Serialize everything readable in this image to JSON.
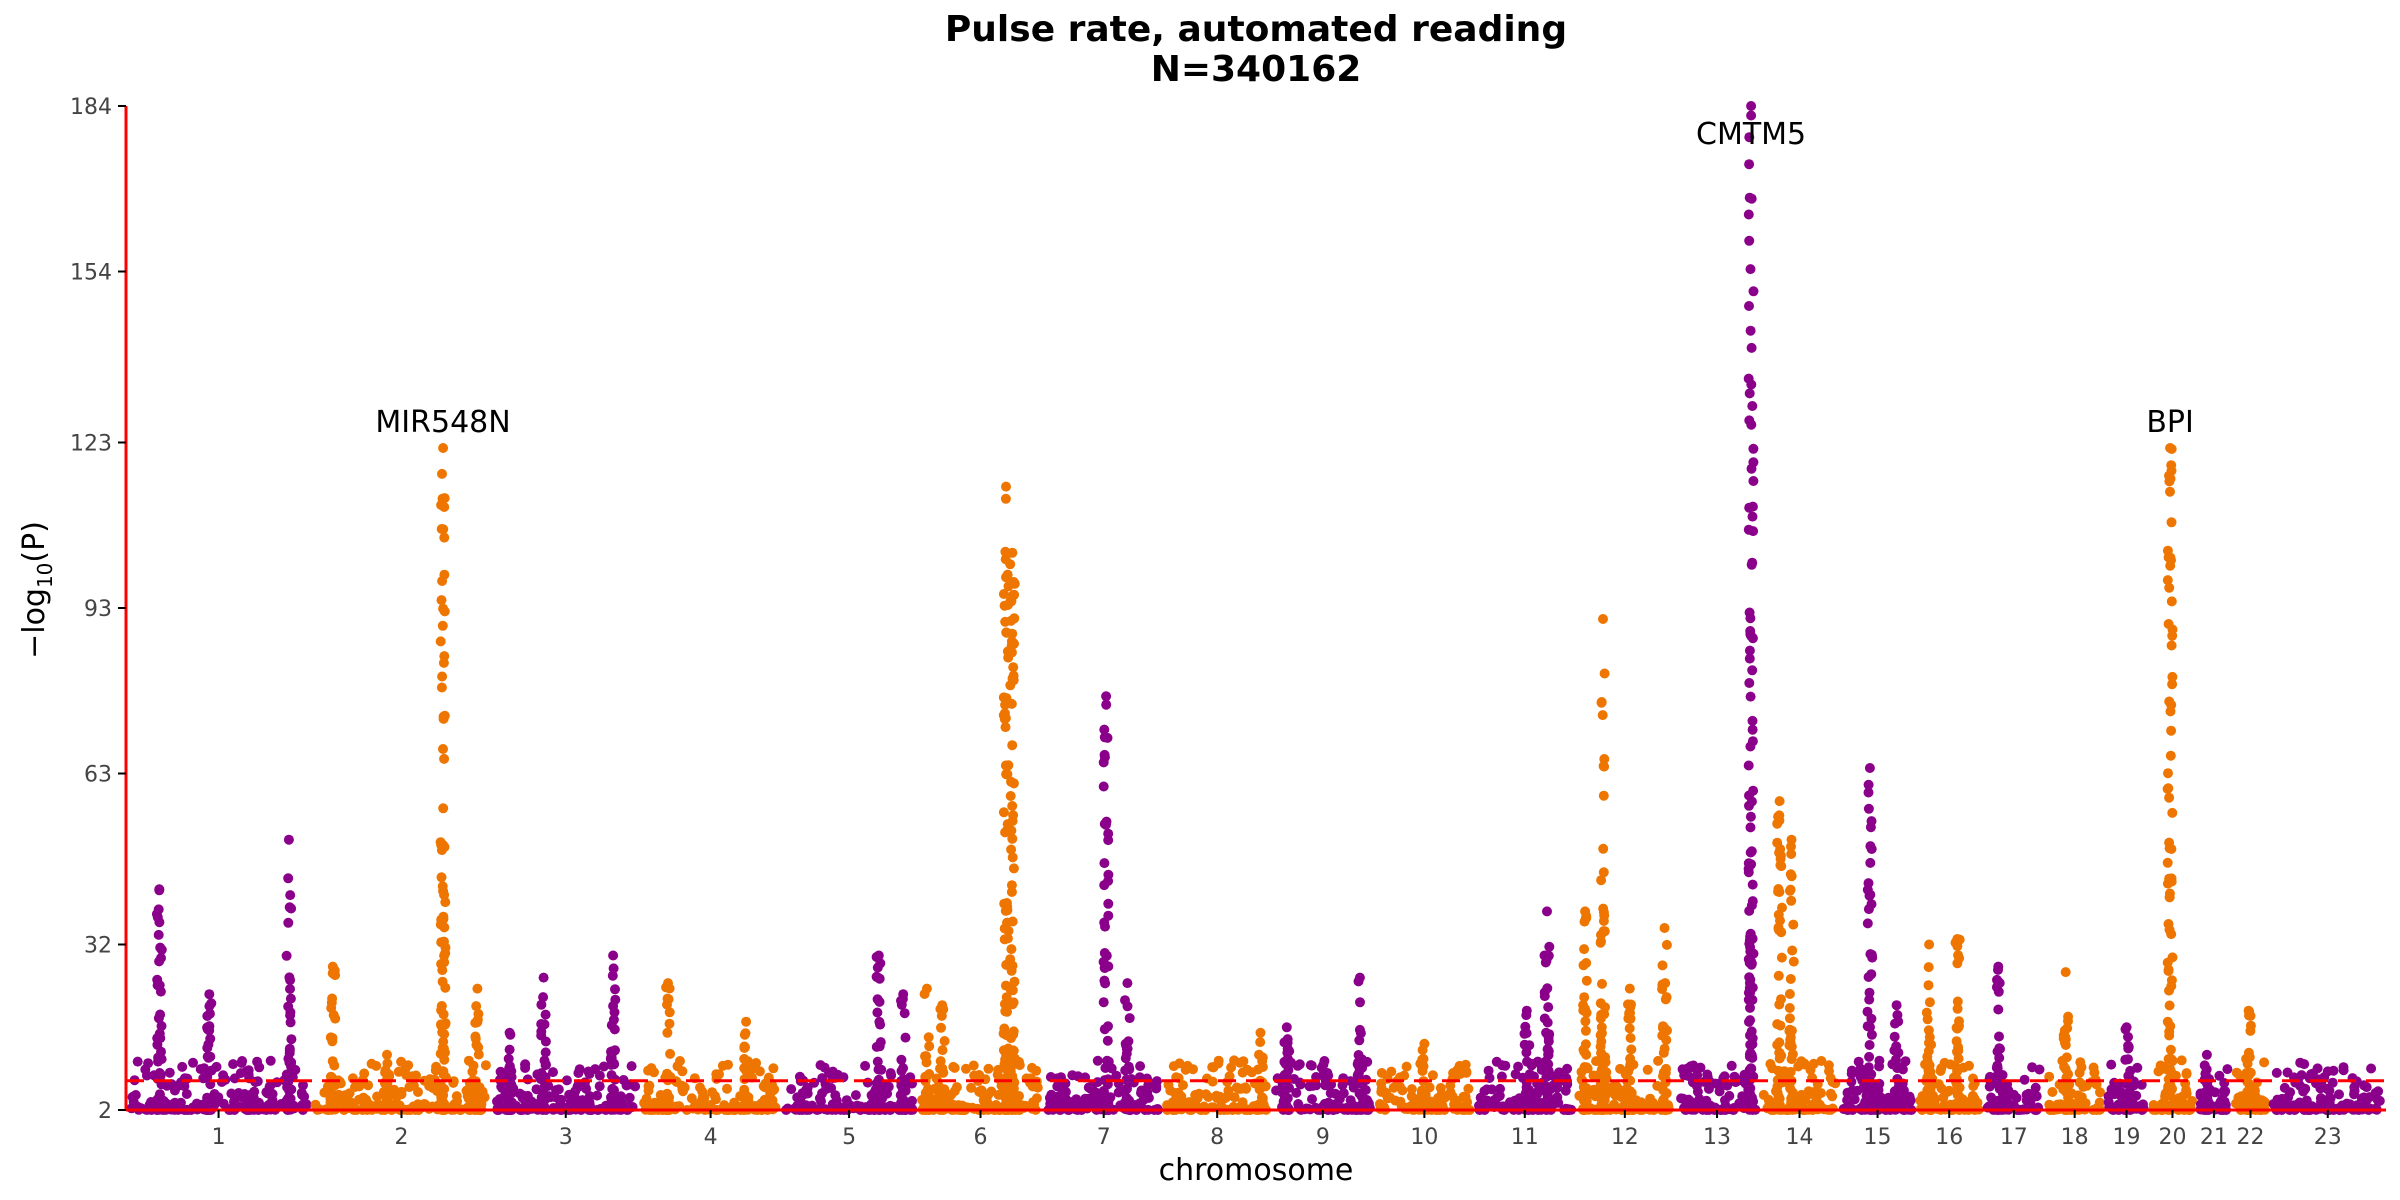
{
  "chart_data": {
    "type": "scatter",
    "subtype": "manhattan",
    "title_line1": "Pulse rate, automated reading",
    "title_line2": "N=340162",
    "xlabel": "chromosome",
    "ylabel_prefix": "−log",
    "ylabel_sub": "10",
    "ylabel_suffix": "(P)",
    "ylim": [
      2,
      184
    ],
    "yticks": [
      2,
      32,
      63,
      93,
      123,
      154,
      184
    ],
    "threshold": 7.3,
    "colors": {
      "odd": "#8B008B",
      "even": "#EE7600",
      "threshold": "#FF0000",
      "axis": "#FF0000"
    },
    "grid": false,
    "legend": "none",
    "chromosomes": [
      {
        "label": "1",
        "size": 248
      },
      {
        "label": "2",
        "size": 242
      },
      {
        "label": "3",
        "size": 198
      },
      {
        "label": "4",
        "size": 190
      },
      {
        "label": "5",
        "size": 181
      },
      {
        "label": "6",
        "size": 171
      },
      {
        "label": "7",
        "size": 159
      },
      {
        "label": "8",
        "size": 145
      },
      {
        "label": "9",
        "size": 138
      },
      {
        "label": "10",
        "size": 134
      },
      {
        "label": "11",
        "size": 135
      },
      {
        "label": "12",
        "size": 133
      },
      {
        "label": "13",
        "size": 114
      },
      {
        "label": "14",
        "size": 107
      },
      {
        "label": "15",
        "size": 102
      },
      {
        "label": "16",
        "size": 90
      },
      {
        "label": "17",
        "size": 83
      },
      {
        "label": "18",
        "size": 80
      },
      {
        "label": "19",
        "size": 59
      },
      {
        "label": "20",
        "size": 64
      },
      {
        "label": "21",
        "size": 47
      },
      {
        "label": "22",
        "size": 51
      },
      {
        "label": "23",
        "size": 156
      }
    ],
    "peaks": [
      {
        "chr": 1,
        "pos": 0.18,
        "max": 42
      },
      {
        "chr": 1,
        "pos": 0.45,
        "max": 23
      },
      {
        "chr": 1,
        "pos": 0.88,
        "max": 51
      },
      {
        "chr": 2,
        "pos": 0.12,
        "max": 28
      },
      {
        "chr": 2,
        "pos": 0.42,
        "max": 12
      },
      {
        "chr": 2,
        "pos": 0.73,
        "max": 122
      },
      {
        "chr": 2,
        "pos": 0.92,
        "max": 24
      },
      {
        "chr": 3,
        "pos": 0.12,
        "max": 16
      },
      {
        "chr": 3,
        "pos": 0.35,
        "max": 26
      },
      {
        "chr": 3,
        "pos": 0.82,
        "max": 30
      },
      {
        "chr": 4,
        "pos": 0.2,
        "max": 25
      },
      {
        "chr": 4,
        "pos": 0.75,
        "max": 18
      },
      {
        "chr": 5,
        "pos": 0.72,
        "max": 30
      },
      {
        "chr": 5,
        "pos": 0.9,
        "max": 23
      },
      {
        "chr": 6,
        "pos": 0.08,
        "max": 24
      },
      {
        "chr": 6,
        "pos": 0.2,
        "max": 21
      },
      {
        "chr": 6,
        "pos": 0.7,
        "max": 115
      },
      {
        "chr": 6,
        "pos": 0.75,
        "max": 103
      },
      {
        "chr": 7,
        "pos": 0.52,
        "max": 77
      },
      {
        "chr": 7,
        "pos": 0.7,
        "max": 25
      },
      {
        "chr": 8,
        "pos": 0.9,
        "max": 16
      },
      {
        "chr": 9,
        "pos": 0.15,
        "max": 17
      },
      {
        "chr": 9,
        "pos": 0.86,
        "max": 26
      },
      {
        "chr": 10,
        "pos": 0.5,
        "max": 14
      },
      {
        "chr": 11,
        "pos": 0.52,
        "max": 20
      },
      {
        "chr": 11,
        "pos": 0.72,
        "max": 38
      },
      {
        "chr": 12,
        "pos": 0.1,
        "max": 38
      },
      {
        "chr": 12,
        "pos": 0.28,
        "max": 91
      },
      {
        "chr": 12,
        "pos": 0.55,
        "max": 24
      },
      {
        "chr": 12,
        "pos": 0.9,
        "max": 35
      },
      {
        "chr": 13,
        "pos": 0.9,
        "max": 184
      },
      {
        "chr": 14,
        "pos": 0.25,
        "max": 58
      },
      {
        "chr": 14,
        "pos": 0.4,
        "max": 51
      },
      {
        "chr": 15,
        "pos": 0.4,
        "max": 64
      },
      {
        "chr": 15,
        "pos": 0.75,
        "max": 21
      },
      {
        "chr": 16,
        "pos": 0.2,
        "max": 32
      },
      {
        "chr": 16,
        "pos": 0.62,
        "max": 33
      },
      {
        "chr": 17,
        "pos": 0.25,
        "max": 28
      },
      {
        "chr": 18,
        "pos": 0.35,
        "max": 27
      },
      {
        "chr": 19,
        "pos": 0.5,
        "max": 17
      },
      {
        "chr": 20,
        "pos": 0.45,
        "max": 122
      },
      {
        "chr": 21,
        "pos": 0.3,
        "max": 12
      },
      {
        "chr": 22,
        "pos": 0.45,
        "max": 20
      },
      {
        "chr": 23,
        "pos": 0.5,
        "max": 9
      }
    ],
    "annotations": [
      {
        "label": "MIR548N",
        "chr": 2,
        "pos": 0.73,
        "value": 122
      },
      {
        "label": "CMTM5",
        "chr": 13,
        "pos": 0.9,
        "value": 184
      },
      {
        "label": "BPI",
        "chr": 20,
        "pos": 0.45,
        "value": 122
      }
    ]
  }
}
